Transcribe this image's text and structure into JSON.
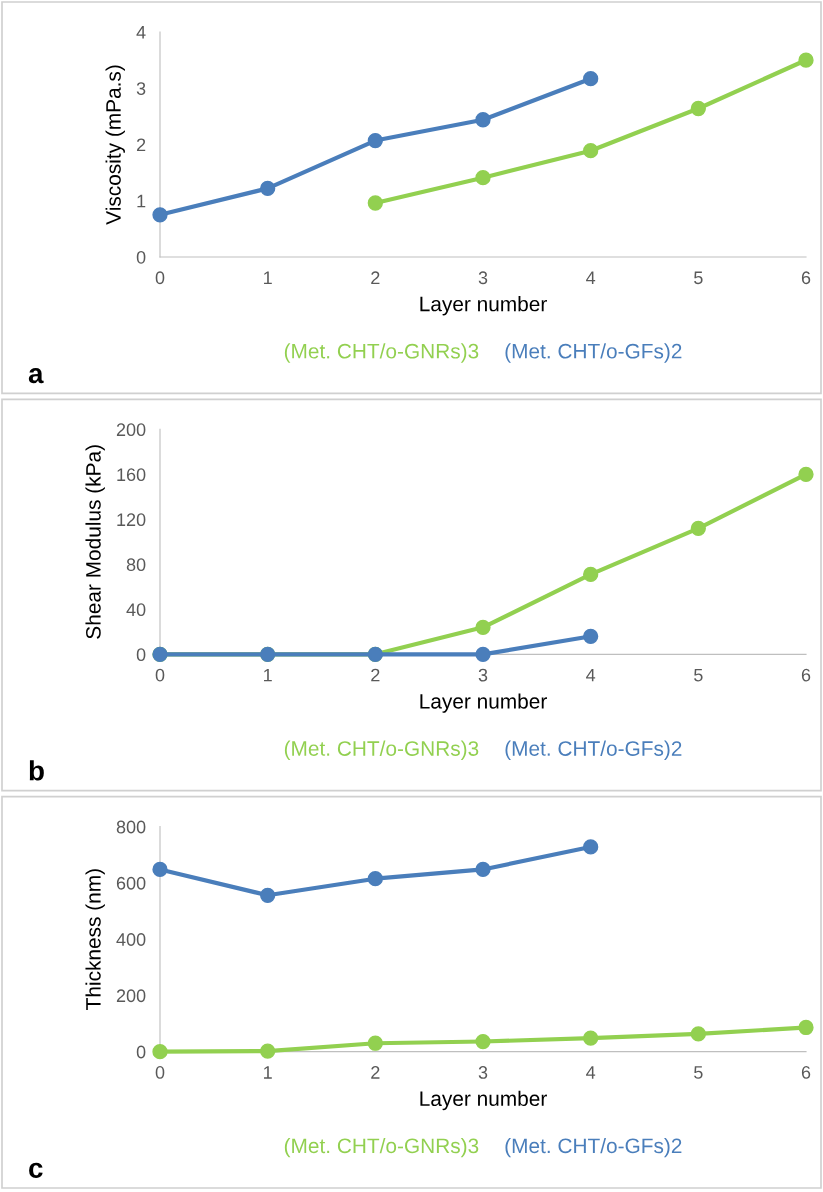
{
  "chart_data": [
    {
      "type": "line",
      "xlabel": "Layer number",
      "ylabel": "Viscosity (mPa.s)",
      "xlim": [
        0,
        6
      ],
      "xticks": [
        0,
        1,
        2,
        3,
        4,
        5,
        6
      ],
      "ylim": [
        0,
        4
      ],
      "yticks": [
        0,
        1,
        2,
        3,
        4
      ],
      "grid": false,
      "legend": "bottom",
      "marker": "circle",
      "annotations": [
        "a"
      ],
      "series": [
        {
          "name": "(Met. CHT/o-GNRs)3",
          "color": "#92d050",
          "x": [
            2,
            3,
            4,
            5,
            6
          ],
          "values": [
            0.96,
            1.41,
            1.89,
            2.64,
            3.5
          ]
        },
        {
          "name": "(Met. CHT/o-GFs)2",
          "color": "#4a7ebb",
          "x": [
            0,
            1,
            2,
            3,
            4
          ],
          "values": [
            0.75,
            1.22,
            2.07,
            2.44,
            3.17
          ]
        }
      ]
    },
    {
      "type": "line",
      "xlabel": "Layer number",
      "ylabel": "Shear Modulus (kPa)",
      "xlim": [
        0,
        6
      ],
      "xticks": [
        0,
        1,
        2,
        3,
        4,
        5,
        6
      ],
      "ylim": [
        0,
        200
      ],
      "yticks": [
        0,
        40,
        80,
        120,
        160,
        200
      ],
      "grid": false,
      "legend": "bottom",
      "marker": "circle",
      "annotations": [
        "b"
      ],
      "series": [
        {
          "name": "(Met. CHT/o-GNRs)3",
          "color": "#92d050",
          "x": [
            0,
            1,
            2,
            3,
            4,
            5,
            6
          ],
          "values": [
            0,
            0,
            0,
            24,
            71,
            112,
            160
          ]
        },
        {
          "name": "(Met. CHT/o-GFs)2",
          "color": "#4a7ebb",
          "x": [
            0,
            1,
            2,
            3,
            4
          ],
          "values": [
            0,
            0,
            0,
            0,
            16
          ]
        }
      ]
    },
    {
      "type": "line",
      "xlabel": "Layer number",
      "ylabel": "Thickness (nm)",
      "xlim": [
        0,
        6
      ],
      "xticks": [
        0,
        1,
        2,
        3,
        4,
        5,
        6
      ],
      "ylim": [
        0,
        800
      ],
      "yticks": [
        0,
        200,
        400,
        600,
        800
      ],
      "grid": false,
      "legend": "bottom",
      "marker": "circle",
      "annotations": [
        "c"
      ],
      "series": [
        {
          "name": "(Met. CHT/o-GNRs)3",
          "color": "#92d050",
          "x": [
            0,
            1,
            2,
            3,
            4,
            5,
            6
          ],
          "values": [
            0,
            2,
            30,
            36,
            48,
            63,
            86
          ]
        },
        {
          "name": "(Met. CHT/o-GFs)2",
          "color": "#4a7ebb",
          "x": [
            0,
            1,
            2,
            3,
            4
          ],
          "values": [
            648,
            556,
            615,
            648,
            728
          ]
        }
      ]
    }
  ]
}
